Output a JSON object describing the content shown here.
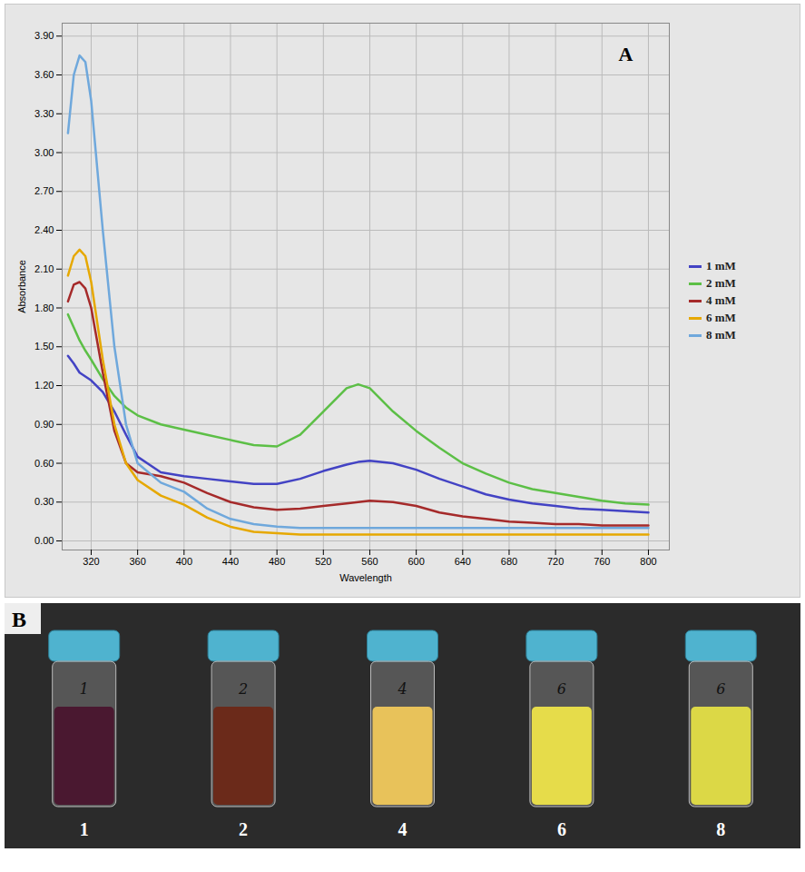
{
  "chart_data": {
    "type": "line",
    "annotations": [
      "A"
    ],
    "x_label": "Wavelength",
    "y_label": "Absorbance",
    "xlim": [
      295,
      818
    ],
    "ylim": [
      -0.07,
      4.0
    ],
    "xticks": [
      320,
      360,
      400,
      440,
      480,
      520,
      560,
      600,
      640,
      680,
      720,
      760,
      800
    ],
    "yticks": [
      {
        "value": 0,
        "label": "0.00"
      },
      {
        "value": 0.3,
        "label": "0.30"
      },
      {
        "value": 0.6,
        "label": "0.60"
      },
      {
        "value": 0.9,
        "label": "0.90"
      },
      {
        "value": 1.2,
        "label": "1.20"
      },
      {
        "value": 1.5,
        "label": "1.50"
      },
      {
        "value": 1.8,
        "label": "1.80"
      },
      {
        "value": 2.1,
        "label": "2.10"
      },
      {
        "value": 2.4,
        "label": "2.40"
      },
      {
        "value": 2.7,
        "label": "2.70"
      },
      {
        "value": 3.0,
        "label": "3.00"
      },
      {
        "value": 3.3,
        "label": "3.30"
      },
      {
        "value": 3.6,
        "label": "3.60"
      },
      {
        "value": 3.9,
        "label": "3.90"
      }
    ],
    "grid": true,
    "legend": "right",
    "x": [
      300,
      305,
      310,
      315,
      320,
      330,
      340,
      350,
      360,
      380,
      400,
      420,
      440,
      460,
      480,
      500,
      520,
      540,
      550,
      560,
      580,
      600,
      620,
      640,
      660,
      680,
      700,
      720,
      740,
      760,
      780,
      800
    ],
    "series": [
      {
        "name": "1 mM",
        "color": "#4343c4",
        "values": [
          1.43,
          1.37,
          1.3,
          1.27,
          1.24,
          1.15,
          1.0,
          0.82,
          0.65,
          0.53,
          0.5,
          0.48,
          0.46,
          0.44,
          0.44,
          0.48,
          0.54,
          0.59,
          0.61,
          0.62,
          0.6,
          0.55,
          0.48,
          0.42,
          0.36,
          0.32,
          0.29,
          0.27,
          0.25,
          0.24,
          0.23,
          0.22
        ]
      },
      {
        "name": "2 mM",
        "color": "#5cbf46",
        "values": [
          1.75,
          1.65,
          1.55,
          1.47,
          1.4,
          1.25,
          1.12,
          1.03,
          0.97,
          0.9,
          0.86,
          0.82,
          0.78,
          0.74,
          0.73,
          0.82,
          1.0,
          1.18,
          1.21,
          1.18,
          1.0,
          0.85,
          0.72,
          0.6,
          0.52,
          0.45,
          0.4,
          0.37,
          0.34,
          0.31,
          0.29,
          0.28
        ]
      },
      {
        "name": "4 mM",
        "color": "#a52a2a",
        "values": [
          1.85,
          1.98,
          2.0,
          1.95,
          1.8,
          1.3,
          0.85,
          0.6,
          0.53,
          0.5,
          0.45,
          0.37,
          0.3,
          0.26,
          0.24,
          0.25,
          0.27,
          0.29,
          0.3,
          0.31,
          0.3,
          0.27,
          0.22,
          0.19,
          0.17,
          0.15,
          0.14,
          0.13,
          0.13,
          0.12,
          0.12,
          0.12
        ]
      },
      {
        "name": "6 mM",
        "color": "#e6a800",
        "values": [
          2.05,
          2.2,
          2.25,
          2.2,
          2.0,
          1.4,
          0.9,
          0.6,
          0.47,
          0.35,
          0.28,
          0.18,
          0.11,
          0.07,
          0.06,
          0.05,
          0.05,
          0.05,
          0.05,
          0.05,
          0.05,
          0.05,
          0.05,
          0.05,
          0.05,
          0.05,
          0.05,
          0.05,
          0.05,
          0.05,
          0.05,
          0.05
        ]
      },
      {
        "name": "8 mM",
        "color": "#6fa8dc",
        "values": [
          3.15,
          3.6,
          3.75,
          3.7,
          3.4,
          2.4,
          1.5,
          0.9,
          0.6,
          0.45,
          0.38,
          0.25,
          0.17,
          0.13,
          0.11,
          0.1,
          0.1,
          0.1,
          0.1,
          0.1,
          0.1,
          0.1,
          0.1,
          0.1,
          0.1,
          0.1,
          0.1,
          0.1,
          0.1,
          0.1,
          0.1,
          0.1
        ]
      }
    ]
  },
  "photo": {
    "panel": "B",
    "vials": [
      {
        "label": "1",
        "written": "1",
        "color": "#4a1830"
      },
      {
        "label": "2",
        "written": "2",
        "color": "#6b2a1a"
      },
      {
        "label": "4",
        "written": "4",
        "color": "#e8c25a"
      },
      {
        "label": "6",
        "written": "6",
        "color": "#e6dc4a"
      },
      {
        "label": "8",
        "written": "6",
        "color": "#dcd846"
      }
    ]
  }
}
